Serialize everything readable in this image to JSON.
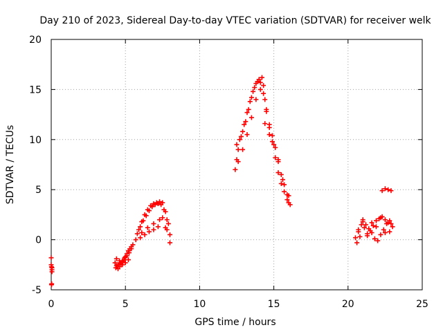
{
  "chart_data": {
    "type": "scatter",
    "title": "Day 210 of 2023, Sidereal Day-to-day VTEC variation (SDTVAR) for receiver welk",
    "xlabel": "GPS time / hours",
    "ylabel": "SDTVAR / TECUs",
    "xlim": [
      0,
      25
    ],
    "ylim": [
      -5,
      20
    ],
    "xticks": [
      0,
      5,
      10,
      15,
      20,
      25
    ],
    "yticks": [
      -5,
      0,
      5,
      10,
      15,
      20
    ],
    "xtick_labels": [
      "0",
      "5",
      "10",
      "15",
      "20",
      "25"
    ],
    "ytick_labels": [
      "-5",
      "0",
      "5",
      "10",
      "15",
      "20"
    ],
    "grid": true,
    "marker": "+",
    "color": "#ff0000",
    "series": [
      {
        "name": "SDTVAR",
        "segments": [
          {
            "x": [
              0.0,
              0.0,
              0.02,
              0.05,
              0.05,
              0.05,
              0.03,
              0.02
            ],
            "y": [
              -1.8,
              -2.5,
              -2.7,
              -2.8,
              -3.0,
              -3.2,
              -4.4,
              -4.5
            ]
          },
          {
            "x": [
              4.3,
              4.4,
              4.5,
              4.6,
              4.7,
              4.8,
              4.9,
              5.0,
              5.1,
              5.2,
              5.3,
              5.4,
              5.5,
              4.35,
              4.5,
              4.65,
              4.8,
              4.95,
              5.1,
              5.25,
              5.4,
              4.4,
              4.6,
              4.8,
              5.0,
              5.2
            ],
            "y": [
              -2.3,
              -2.6,
              -2.9,
              -2.7,
              -2.4,
              -2.2,
              -2.0,
              -1.7,
              -1.4,
              -1.1,
              -0.9,
              -0.7,
              -0.5,
              -2.8,
              -2.5,
              -2.3,
              -2.1,
              -1.8,
              -1.6,
              -1.3,
              -0.9,
              -1.9,
              -2.1,
              -2.5,
              -2.3,
              -2.0
            ]
          },
          {
            "x": [
              5.7,
              5.9,
              6.1,
              6.3,
              6.5,
              6.7,
              6.9,
              7.1,
              7.3,
              7.5,
              7.7,
              7.9,
              8.0,
              5.8,
              6.0,
              6.2,
              6.4,
              6.6,
              6.8,
              7.0,
              7.2,
              7.4,
              7.6,
              7.8,
              6.0,
              6.3,
              6.6,
              6.9,
              7.2,
              7.5,
              7.8,
              6.1,
              6.5,
              6.9,
              7.3,
              7.7,
              8.0
            ],
            "y": [
              0.0,
              1.0,
              1.8,
              2.5,
              3.0,
              3.4,
              3.6,
              3.7,
              3.8,
              3.7,
              2.8,
              1.6,
              0.5,
              0.6,
              1.3,
              1.9,
              2.4,
              2.9,
              3.3,
              3.5,
              3.6,
              3.5,
              3.0,
              2.0,
              0.2,
              0.5,
              0.8,
              1.0,
              1.3,
              2.2,
              1.0,
              0.7,
              1.2,
              1.6,
              2.0,
              1.2,
              -0.3
            ]
          },
          {
            "x": [
              12.4,
              12.5,
              12.6,
              12.8,
              13.0,
              13.2,
              13.4,
              13.6,
              13.8,
              14.0,
              14.2,
              14.3,
              14.4,
              14.5,
              14.7,
              14.9,
              15.1,
              15.3,
              15.5,
              15.7,
              15.9,
              16.0,
              16.1,
              12.5,
              12.7,
              12.9,
              13.1,
              13.3,
              13.5,
              13.7,
              13.9,
              14.1,
              14.3,
              14.5,
              14.7,
              14.9,
              15.1,
              15.3,
              15.5,
              15.7,
              16.0,
              12.6,
              12.9,
              13.2,
              13.5,
              13.8,
              14.1,
              14.4,
              14.7,
              15.0,
              15.3,
              15.6,
              15.9
            ],
            "y": [
              7.0,
              8.0,
              9.0,
              10.3,
              11.5,
              12.7,
              13.8,
              14.8,
              15.6,
              16.0,
              16.2,
              15.4,
              14.0,
              12.8,
              11.2,
              9.8,
              8.2,
              6.7,
              5.6,
              4.8,
              4.0,
              3.7,
              3.5,
              9.5,
              10.0,
              10.8,
              11.8,
              13.0,
              14.2,
              15.2,
              15.8,
              15.7,
              14.6,
              13.0,
              11.5,
              10.4,
              9.2,
              7.8,
              6.5,
              5.5,
              4.4,
              7.8,
              9.0,
              10.5,
              12.2,
              14.0,
              15.0,
              11.6,
              10.5,
              9.5,
              8.0,
              6.0,
              4.5
            ]
          },
          {
            "x": [
              20.5,
              20.7,
              20.9,
              21.1,
              21.3,
              21.5,
              21.7,
              21.9,
              22.1,
              22.3,
              22.5,
              22.7,
              22.9,
              23.0,
              20.6,
              20.8,
              21.0,
              21.2,
              21.4,
              21.6,
              21.8,
              22.0,
              22.2,
              22.4,
              22.6,
              22.8,
              20.7,
              21.0,
              21.3,
              21.6,
              21.9,
              22.2,
              22.5,
              22.8,
              22.3,
              22.5,
              22.7,
              22.9
            ],
            "y": [
              0.2,
              0.8,
              1.5,
              1.2,
              0.6,
              0.9,
              1.4,
              1.9,
              2.1,
              2.3,
              2.0,
              1.7,
              1.6,
              1.3,
              -0.3,
              0.3,
              1.8,
              1.5,
              1.1,
              0.7,
              0.1,
              -0.1,
              0.5,
              1.0,
              1.6,
              0.8,
              1.0,
              2.0,
              0.4,
              1.7,
              1.3,
              2.2,
              0.7,
              1.9,
              4.9,
              5.1,
              5.0,
              4.9
            ]
          }
        ]
      }
    ]
  }
}
